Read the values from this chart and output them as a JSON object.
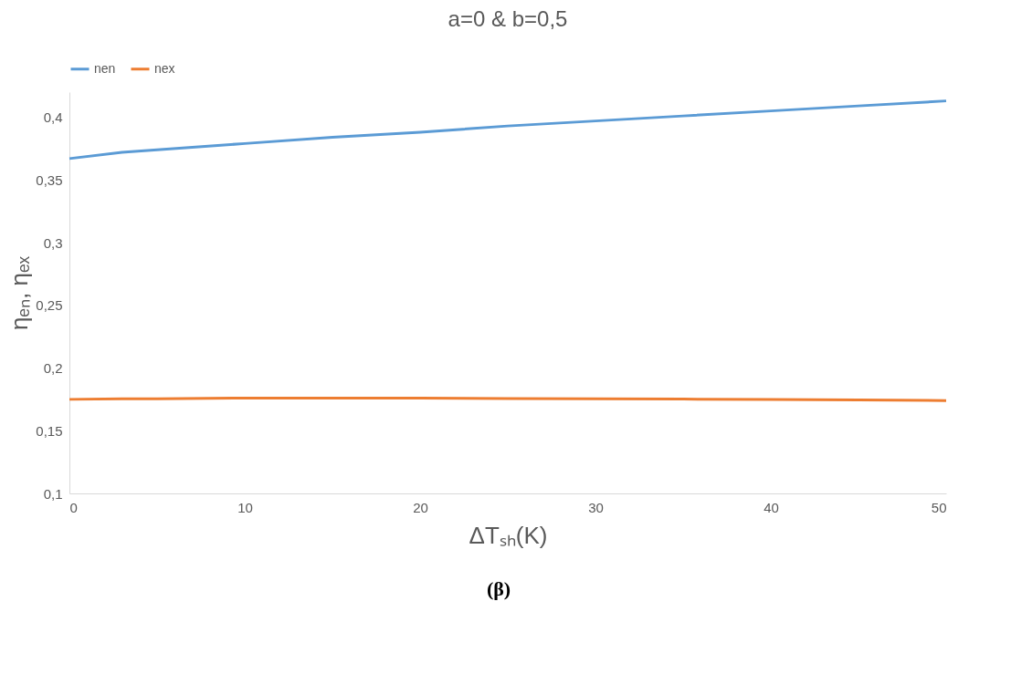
{
  "chart_data": {
    "type": "line",
    "title": "a=0 & b=0,5",
    "xlabel": "ΔTₛₕ(K)",
    "ylabel": "ηₑₙ, ηₑₓ",
    "x": [
      0,
      3,
      5,
      10,
      15,
      20,
      25,
      30,
      35,
      40,
      45,
      50
    ],
    "series": [
      {
        "name": "nen",
        "color": "#5b9bd5",
        "values": [
          0.367,
          0.372,
          0.374,
          0.379,
          0.384,
          0.388,
          0.393,
          0.397,
          0.401,
          0.405,
          0.409,
          0.413
        ]
      },
      {
        "name": "nex",
        "color": "#ed7d31",
        "values": [
          0.175,
          0.1755,
          0.1755,
          0.176,
          0.176,
          0.176,
          0.1757,
          0.1755,
          0.1752,
          0.175,
          0.1745,
          0.174
        ]
      }
    ],
    "xlim": [
      0,
      50
    ],
    "xticks": [
      0,
      10,
      20,
      30,
      40,
      50
    ],
    "ylim": [
      0.1,
      0.42
    ],
    "yticks": [
      {
        "value": 0.1,
        "label": "0,1"
      },
      {
        "value": 0.15,
        "label": "0,15"
      },
      {
        "value": 0.2,
        "label": "0,2"
      },
      {
        "value": 0.25,
        "label": "0,25"
      },
      {
        "value": 0.3,
        "label": "0,3"
      },
      {
        "value": 0.35,
        "label": "0,35"
      },
      {
        "value": 0.4,
        "label": "0,4"
      }
    ],
    "grid": false,
    "legend": "top",
    "marker": "none",
    "line_style": "solid",
    "annotations": [
      "(β)"
    ]
  }
}
